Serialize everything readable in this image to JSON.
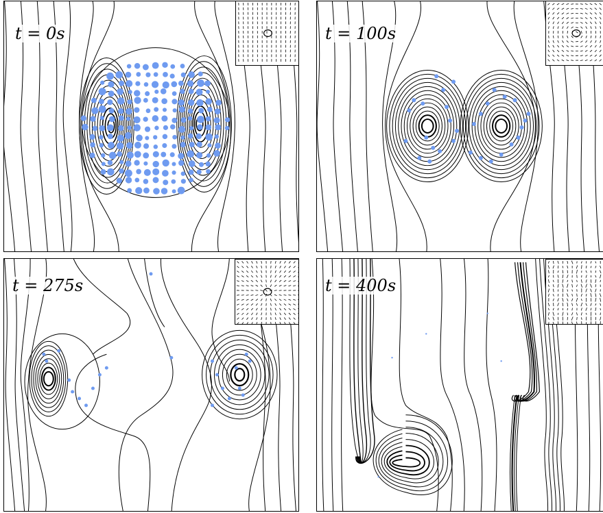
{
  "panels": [
    {
      "label": "t = 0s",
      "time": 0
    },
    {
      "label": "t = 100s",
      "time": 100
    },
    {
      "label": "t = 275s",
      "time": 275
    },
    {
      "label": "t = 400s",
      "time": 400
    }
  ],
  "colors": {
    "streamline": "#000000",
    "particle": "#6f9bf0",
    "frame": "#000000"
  }
}
